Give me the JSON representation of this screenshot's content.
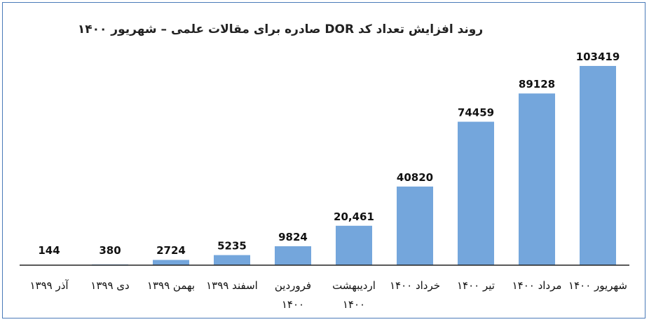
{
  "chart_data": {
    "type": "bar",
    "title": "روند افزایش تعداد کد DOR صادره برای مقالات علمی – شهریور ۱۴۰۰",
    "categories": [
      [
        "آذر ۱۳۹۹"
      ],
      [
        "دی ۱۳۹۹"
      ],
      [
        "بهمن ۱۳۹۹"
      ],
      [
        "اسفند ۱۳۹۹"
      ],
      [
        "فروردین",
        "۱۴۰۰"
      ],
      [
        "اردیبهشت",
        "۱۴۰۰"
      ],
      [
        "خرداد ۱۴۰۰"
      ],
      [
        "تیر ۱۴۰۰"
      ],
      [
        "مرداد ۱۴۰۰"
      ],
      [
        "شهریور ۱۴۰۰"
      ]
    ],
    "values": [
      144,
      380,
      2724,
      5235,
      9824,
      20461,
      40820,
      74459,
      89128,
      103419
    ],
    "value_labels": [
      "144",
      "380",
      "2724",
      "5235",
      "9824",
      "20,461",
      "40820",
      "74459",
      "89128",
      "103419"
    ],
    "ylim": [
      0,
      103419
    ],
    "bar_color": "#74a6dc",
    "axis_color": "#222222",
    "grid": false,
    "legend": "none"
  }
}
